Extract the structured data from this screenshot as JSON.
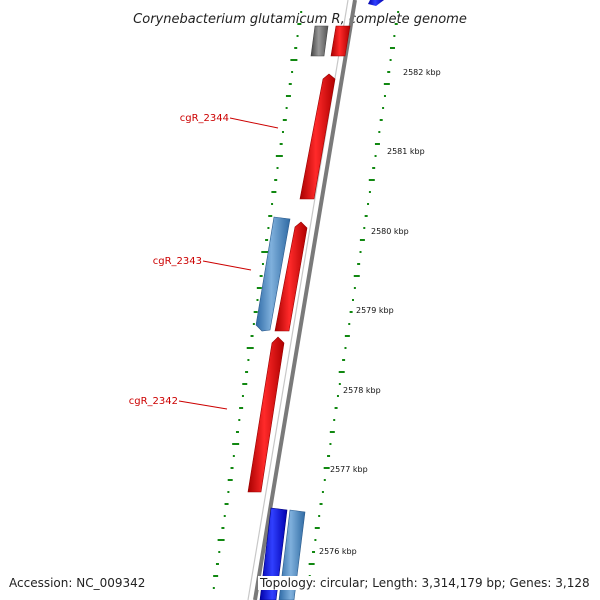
{
  "title": "Corynebacterium glutamicum R, complete genome",
  "footer": {
    "accession": "Accession: NC_009342",
    "topology": "Topology: circular; Length: 3,314,179 bp; Genes: 3,128"
  },
  "colors": {
    "forward_gene": "#ff0000",
    "reverse_gene": "#4f87c0",
    "reverse_gene_dark": "#0000ee",
    "hypothetical_gene": "#777777",
    "backbone": "#8a8a8a",
    "gc_marks": "#118811",
    "label": "#cc0000"
  },
  "gene_labels": [
    {
      "id": "cgR_2344",
      "text": "cgR_2344"
    },
    {
      "id": "cgR_2343",
      "text": "cgR_2343"
    },
    {
      "id": "cgR_2342",
      "text": "cgR_2342"
    }
  ],
  "scale_ticks": [
    {
      "text": "2582 kbp"
    },
    {
      "text": "2581 kbp"
    },
    {
      "text": "2580 kbp"
    },
    {
      "text": "2579 kbp"
    },
    {
      "text": "2578 kbp"
    },
    {
      "text": "2577 kbp"
    },
    {
      "text": "2576 kbp"
    }
  ]
}
